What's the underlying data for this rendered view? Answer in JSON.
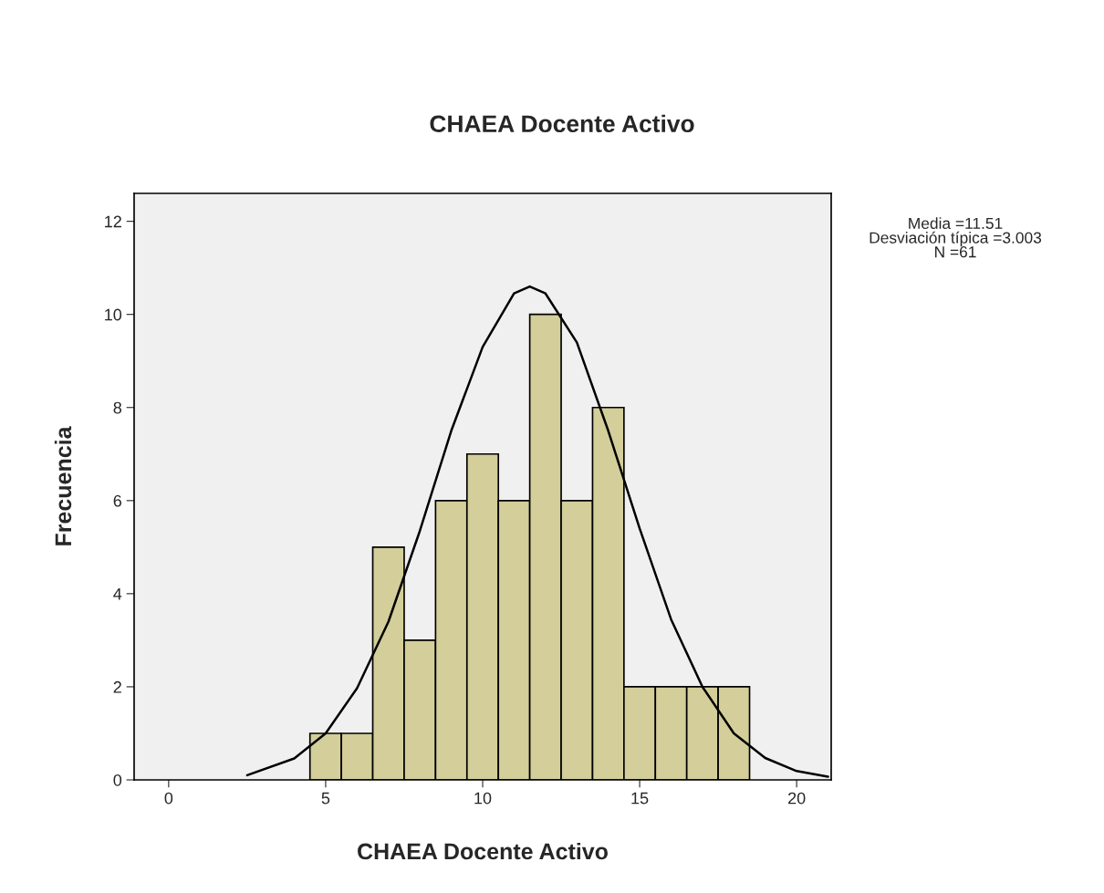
{
  "chart_data": {
    "type": "histogram",
    "title": "CHAEA Docente Activo",
    "xlabel": "CHAEA Docente Activo",
    "ylabel": "Frecuencia",
    "bins": [
      4.5,
      5.5,
      6.5,
      7.5,
      8.5,
      9.5,
      10.5,
      11.5,
      12.5,
      13.5,
      14.5,
      15.5,
      16.5,
      17.5,
      18.5
    ],
    "values": [
      1,
      1,
      5,
      3,
      6,
      7,
      6,
      10,
      6,
      8,
      2,
      2,
      2,
      2
    ],
    "color": "#d3ce9a",
    "series": [
      {
        "type": "line",
        "color": "#000000",
        "x": [
          2.5,
          4,
          5,
          6,
          7,
          8,
          9,
          10,
          11,
          11.5,
          12,
          13,
          14,
          15,
          16,
          17,
          18,
          19,
          20,
          21
        ],
        "values": [
          0.1,
          0.46,
          1.0,
          1.97,
          3.4,
          5.35,
          7.5,
          9.3,
          10.45,
          10.6,
          10.45,
          9.4,
          7.5,
          5.4,
          3.45,
          2.0,
          1.0,
          0.47,
          0.19,
          0.07
        ]
      }
    ],
    "xlim": [
      -1.1,
      21.1
    ],
    "xticks": [
      0,
      5,
      10,
      15,
      20
    ],
    "ylim": [
      0,
      12.6
    ],
    "yticks": [
      0,
      2,
      4,
      6,
      8,
      10,
      12
    ],
    "annotations": [
      "Media =11.51\nDesviación típica =3.003\nN =61"
    ]
  }
}
